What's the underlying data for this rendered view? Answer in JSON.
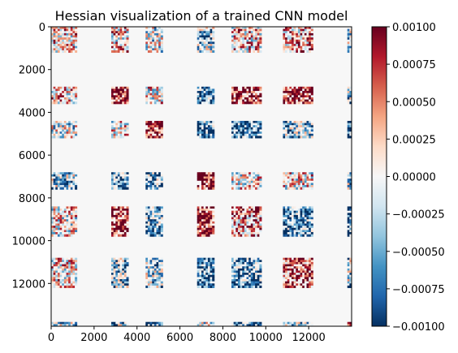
{
  "chart_data": {
    "type": "heatmap",
    "title": "Hessian visualization of a trained CNN model",
    "xlabel": "",
    "ylabel": "",
    "matrix_size": 14000,
    "xlim": [
      0,
      14000
    ],
    "ylim": [
      14000,
      0
    ],
    "x_ticks": [
      0,
      2000,
      4000,
      6000,
      8000,
      10000,
      12000
    ],
    "x_tick_labels": [
      "0",
      "2000",
      "4000",
      "6000",
      "8000",
      "10000",
      "12000"
    ],
    "y_ticks": [
      0,
      2000,
      4000,
      6000,
      8000,
      10000,
      12000
    ],
    "y_tick_labels": [
      "0",
      "2000",
      "4000",
      "6000",
      "8000",
      "10000",
      "12000"
    ],
    "background_value": 0.0,
    "block_ranges": [
      {
        "start": 0,
        "end": 1200
      },
      {
        "start": 2800,
        "end": 3600
      },
      {
        "start": 4400,
        "end": 5200
      },
      {
        "start": 6800,
        "end": 7600
      },
      {
        "start": 8400,
        "end": 9800
      },
      {
        "start": 10800,
        "end": 12200
      },
      {
        "start": 13800,
        "end": 14000
      }
    ],
    "block_mean_values": [
      [
        0.0002,
        0.0002,
        -0.0001,
        -0.0003,
        0.0002,
        0.0003,
        -0.0002
      ],
      [
        0.0002,
        0.0009,
        0.0001,
        -0.0006,
        0.0008,
        0.0007,
        -0.0004
      ],
      [
        -0.0001,
        0.0001,
        0.0009,
        -0.0006,
        -0.0007,
        -0.0004,
        -0.0008
      ],
      [
        -0.0003,
        -0.0006,
        -0.0005,
        0.0009,
        0.0001,
        0.0001,
        -0.0002
      ],
      [
        0.0001,
        0.0008,
        -0.0005,
        0.0009,
        0.0004,
        -0.0006,
        -0.0007
      ],
      [
        0.0002,
        -0.0004,
        -0.0003,
        -0.0007,
        -0.0006,
        0.0006,
        -0.0003
      ],
      [
        -0.0002,
        -0.0004,
        -0.0007,
        -0.0002,
        -0.0007,
        -0.0003,
        0.0009
      ]
    ],
    "colorbar": {
      "colormap": "RdBu_r",
      "vmin": -0.001,
      "vmax": 0.001,
      "ticks": [
        -0.001,
        -0.00075,
        -0.0005,
        -0.00025,
        0.0,
        0.00025,
        0.0005,
        0.00075,
        0.001
      ],
      "tick_labels": [
        "−0.00100",
        "−0.00075",
        "−0.00050",
        "−0.00025",
        "0.00000",
        "0.00025",
        "0.00050",
        "0.00075",
        "0.00100"
      ],
      "colors": [
        "#053061",
        "#2166ac",
        "#4393c3",
        "#92c5de",
        "#d1e5f0",
        "#f7f7f7",
        "#fddbc7",
        "#f4a582",
        "#d6604d",
        "#b2182b",
        "#67001f"
      ]
    }
  }
}
